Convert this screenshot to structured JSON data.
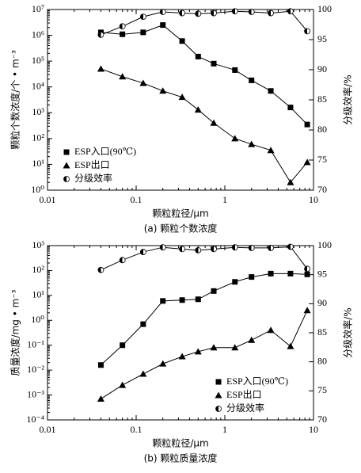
{
  "chart_data": [
    {
      "type": "line",
      "caption": "(a) 颗粒个数浓度",
      "xlabel": "颗粒粒径/μm",
      "ylabel": "颗粒个数浓度/个 • m⁻³",
      "y2label": "分级效率/%",
      "xlog": true,
      "ylog": true,
      "legend": "lower left",
      "xlim": [
        0.01,
        10
      ],
      "xticks": [
        0.01,
        0.1,
        1,
        10
      ],
      "ylim": [
        1,
        10000000
      ],
      "yticks": [
        {
          "value": 1,
          "label": "10⁰"
        },
        {
          "value": 10,
          "label": "10¹"
        },
        {
          "value": 100,
          "label": "10²"
        },
        {
          "value": 1000,
          "label": "10³"
        },
        {
          "value": 10000,
          "label": "10⁴"
        },
        {
          "value": 100000,
          "label": "10⁵"
        },
        {
          "value": 1000000,
          "label": "10⁶"
        },
        {
          "value": 10000000,
          "label": "10⁷"
        }
      ],
      "y2lim": [
        70,
        100
      ],
      "y2ticks": [
        70,
        75,
        80,
        85,
        90,
        95,
        100
      ],
      "x": [
        0.04,
        0.07,
        0.12,
        0.2,
        0.33,
        0.5,
        0.75,
        1.3,
        2,
        3.3,
        5.5,
        8.5
      ],
      "series": [
        {
          "name": "ESP入口(90℃)",
          "color": "#000000",
          "marker": "square",
          "values": [
            1300000,
            1100000,
            1300000,
            2500000,
            600000,
            150000,
            80000,
            45000,
            18000,
            7000,
            1600,
            350
          ]
        },
        {
          "name": "ESP出口",
          "color": "#000000",
          "marker": "triangle",
          "values": [
            50000,
            25000,
            14000,
            7000,
            4000,
            1300,
            400,
            100,
            60,
            35,
            2,
            12
          ]
        },
        {
          "name": "分级效率",
          "color": "#000000",
          "marker": "half-circle",
          "axis": "y2",
          "values": [
            95.8,
            97.2,
            98.8,
            99.6,
            99.4,
            99.3,
            99.4,
            99.7,
            99.6,
            99.4,
            99.7,
            96.4
          ]
        }
      ]
    },
    {
      "type": "line",
      "caption": "(b) 颗粒质量浓度",
      "xlabel": "颗粒粒径/μm",
      "ylabel": "质量浓度/mg • m⁻³",
      "y2label": "分级效率/%",
      "xlog": true,
      "ylog": true,
      "legend": "lower right",
      "xlim": [
        0.01,
        10
      ],
      "xticks": [
        0.01,
        0.1,
        1,
        10
      ],
      "ylim": [
        0.0001,
        1000
      ],
      "yticks": [
        {
          "value": 0.0001,
          "label": "10⁻⁴"
        },
        {
          "value": 0.001,
          "label": "10⁻³"
        },
        {
          "value": 0.01,
          "label": "10⁻²"
        },
        {
          "value": 0.1,
          "label": "10⁻¹"
        },
        {
          "value": 1,
          "label": "10⁰"
        },
        {
          "value": 10,
          "label": "10¹"
        },
        {
          "value": 100,
          "label": "10²"
        },
        {
          "value": 1000,
          "label": "10³"
        }
      ],
      "y2lim": [
        70,
        100
      ],
      "y2ticks": [
        70,
        75,
        80,
        85,
        90,
        95,
        100
      ],
      "x": [
        0.04,
        0.07,
        0.12,
        0.2,
        0.33,
        0.5,
        0.75,
        1.3,
        2,
        3.3,
        5.5,
        8.5
      ],
      "series": [
        {
          "name": "ESP入口(90℃)",
          "color": "#000000",
          "marker": "square",
          "values": [
            0.016,
            0.1,
            0.7,
            6,
            6.5,
            7,
            15,
            35,
            55,
            75,
            75,
            70
          ]
        },
        {
          "name": "ESP出口",
          "color": "#000000",
          "marker": "triangle",
          "values": [
            0.0007,
            0.0025,
            0.007,
            0.018,
            0.035,
            0.055,
            0.08,
            0.08,
            0.16,
            0.4,
            0.09,
            2.5
          ]
        },
        {
          "name": "分级效率",
          "color": "#000000",
          "marker": "half-circle",
          "axis": "y2",
          "values": [
            95.8,
            97.5,
            98.9,
            99.7,
            99.4,
            99.2,
            99.4,
            99.7,
            99.6,
            99.6,
            99.8,
            96
          ]
        }
      ]
    }
  ]
}
